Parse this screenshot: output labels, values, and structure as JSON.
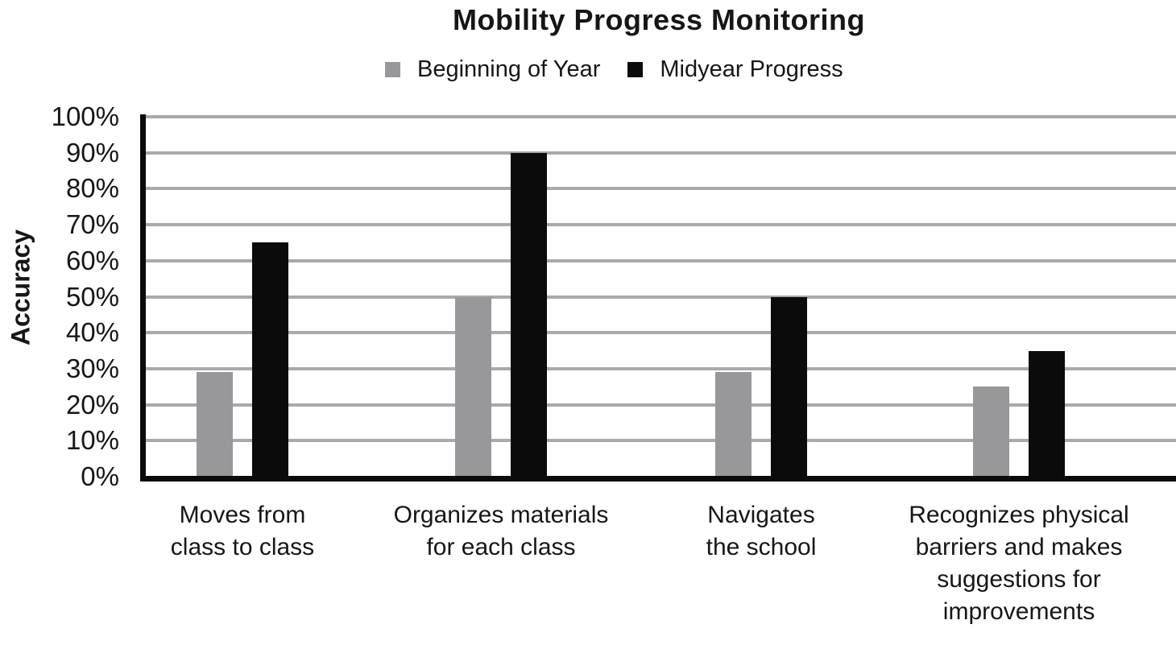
{
  "title": "Mobility Progress Monitoring",
  "colors": {
    "background": "#ffffff",
    "gridline": "#a9a9ad",
    "axis": "#0b0b0b",
    "text": "#161616",
    "series_gray": "#98989b",
    "series_black": "#0b0b0b"
  },
  "chart_data": {
    "type": "bar",
    "title": "Mobility Progress Monitoring",
    "xlabel": "",
    "ylabel": "Accuracy",
    "ylim": [
      0,
      100
    ],
    "ytick_step": 10,
    "ytick_labels": [
      "0%",
      "10%",
      "20%",
      "30%",
      "40%",
      "50%",
      "60%",
      "70%",
      "80%",
      "90%",
      "100%"
    ],
    "grid": "horizontal",
    "legend_position": "top",
    "categories": [
      "Moves from class to class",
      "Organizes materials for each class",
      "Navigates the school",
      "Recognizes physical barriers and makes suggestions for improvements"
    ],
    "category_label_lines": [
      [
        "Moves from",
        "class to class"
      ],
      [
        "Organizes materials",
        "for each class"
      ],
      [
        "Navigates",
        "the school"
      ],
      [
        "Recognizes physical",
        "barriers and makes",
        "suggestions for",
        "improvements"
      ]
    ],
    "series": [
      {
        "name": "Beginning of Year",
        "color": "#98989b",
        "values": [
          29,
          50,
          29,
          25
        ]
      },
      {
        "name": "Midyear Progress",
        "color": "#0b0b0b",
        "values": [
          65,
          90,
          50,
          35
        ]
      }
    ]
  }
}
